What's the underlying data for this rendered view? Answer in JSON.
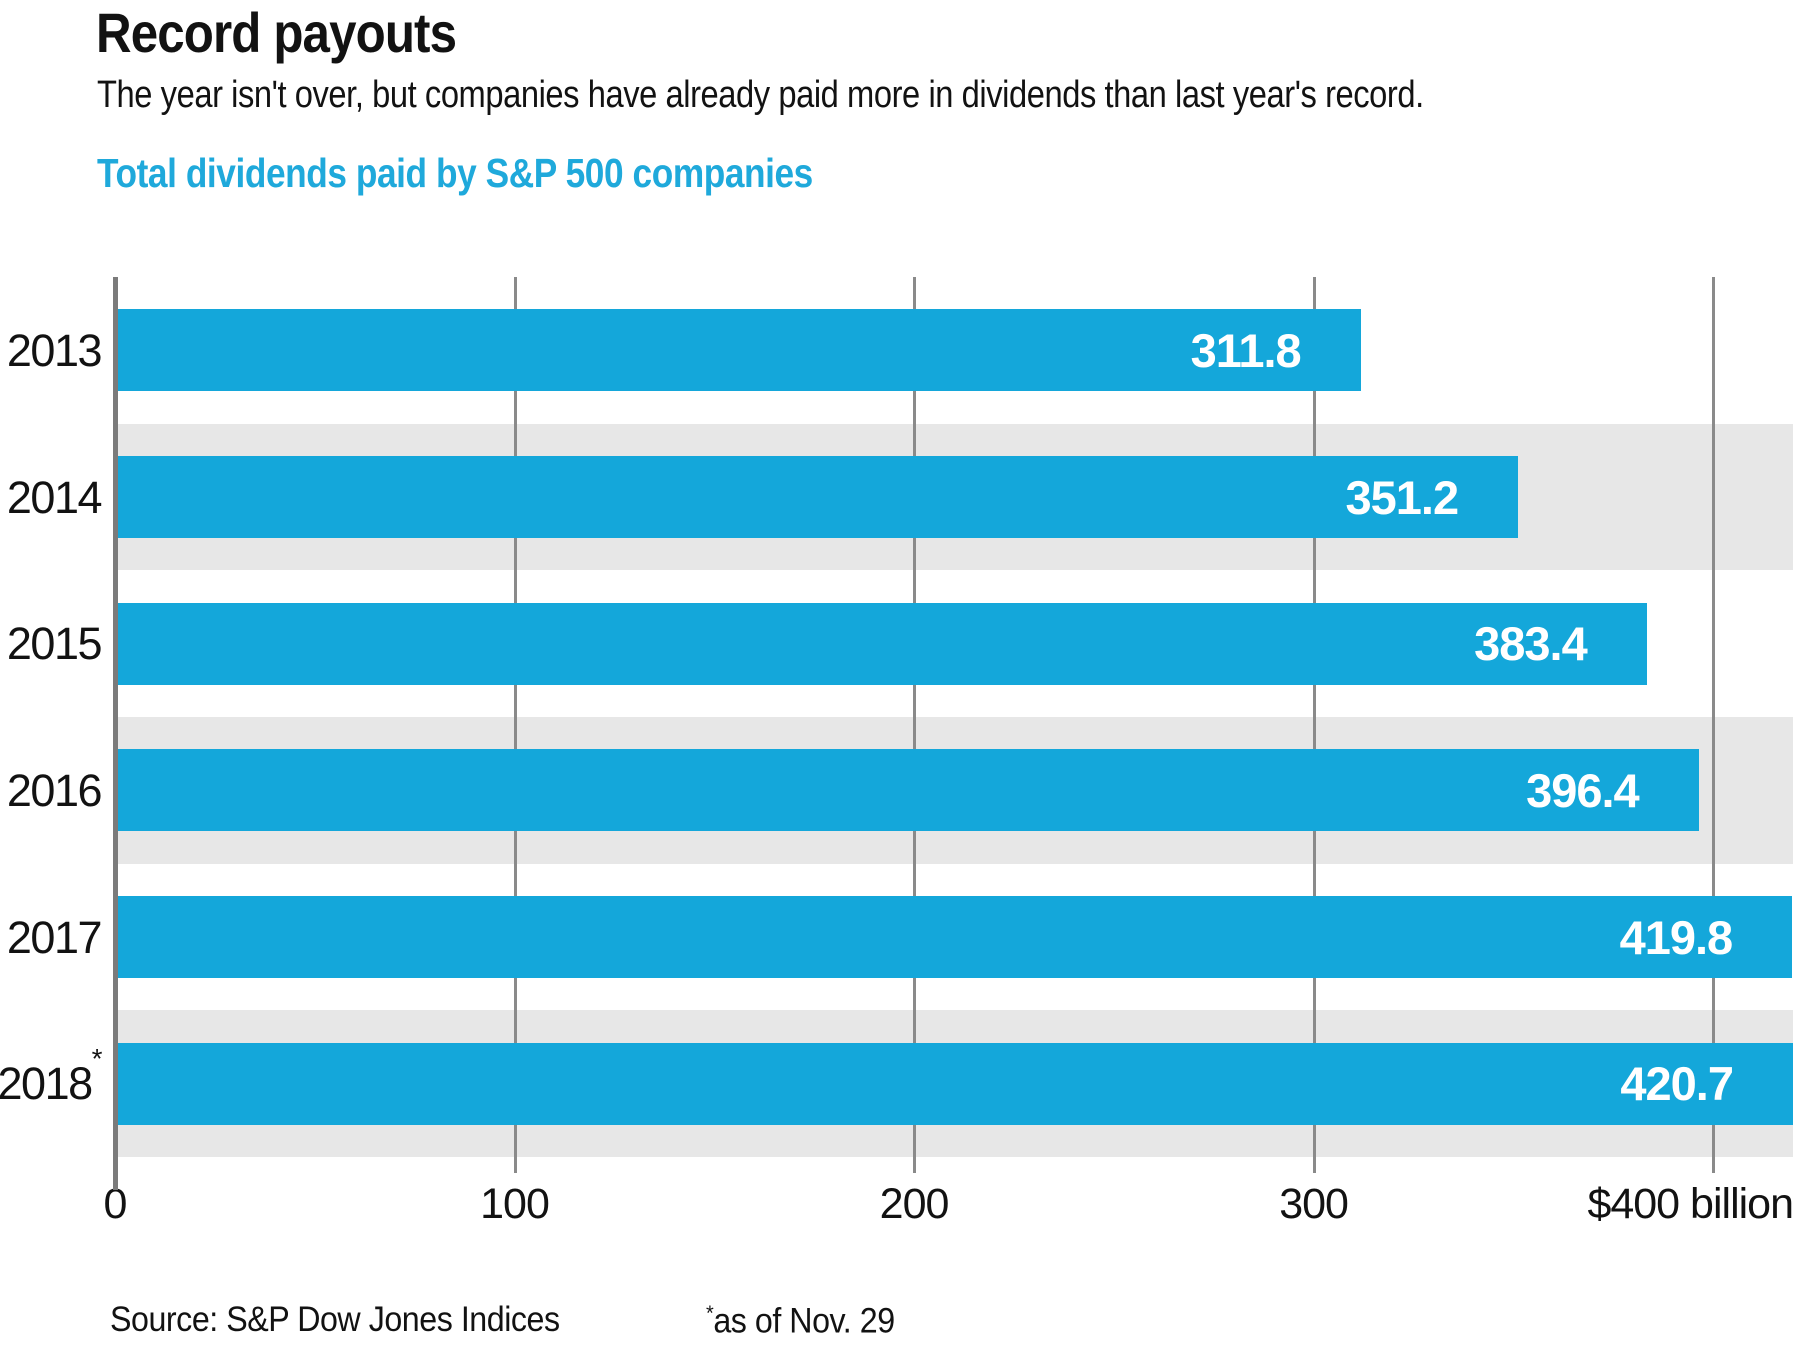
{
  "header": {
    "title": "Record payouts",
    "subtitle": "The year isn't over, but companies have already paid more in dividends than last year's record.",
    "chart_label": "Total dividends paid by S&P 500 companies"
  },
  "footer": {
    "source": "Source: S&P Dow Jones Indices",
    "footnote_symbol": "*",
    "footnote": "as of Nov. 29"
  },
  "colors": {
    "bar": "#14a7da",
    "heading": "#1fa9db",
    "band": "#e7e7e7",
    "gridline": "#8a8a8a",
    "axis": "#7b7b7b",
    "text": "#121212",
    "bar_label": "#ffffff"
  },
  "chart_data": {
    "type": "bar",
    "orientation": "horizontal",
    "title": "Total dividends paid by S&P 500 companies",
    "categories": [
      "2013",
      "2014",
      "2015",
      "2016",
      "2017",
      "2018*"
    ],
    "values": [
      311.8,
      351.2,
      383.4,
      396.4,
      419.8,
      420.7
    ],
    "value_labels": [
      "311.8",
      "351.2",
      "383.4",
      "396.4",
      "419.8",
      "420.7"
    ],
    "xlim": [
      0,
      420
    ],
    "xticks": [
      {
        "value": 0,
        "label": "0"
      },
      {
        "value": 100,
        "label": "100"
      },
      {
        "value": 200,
        "label": "200"
      },
      {
        "value": 300,
        "label": "300"
      },
      {
        "value": 400,
        "label": "$400 billion",
        "anchor": "right"
      }
    ],
    "grid": true,
    "banded_rows": [
      1,
      3,
      5
    ]
  }
}
